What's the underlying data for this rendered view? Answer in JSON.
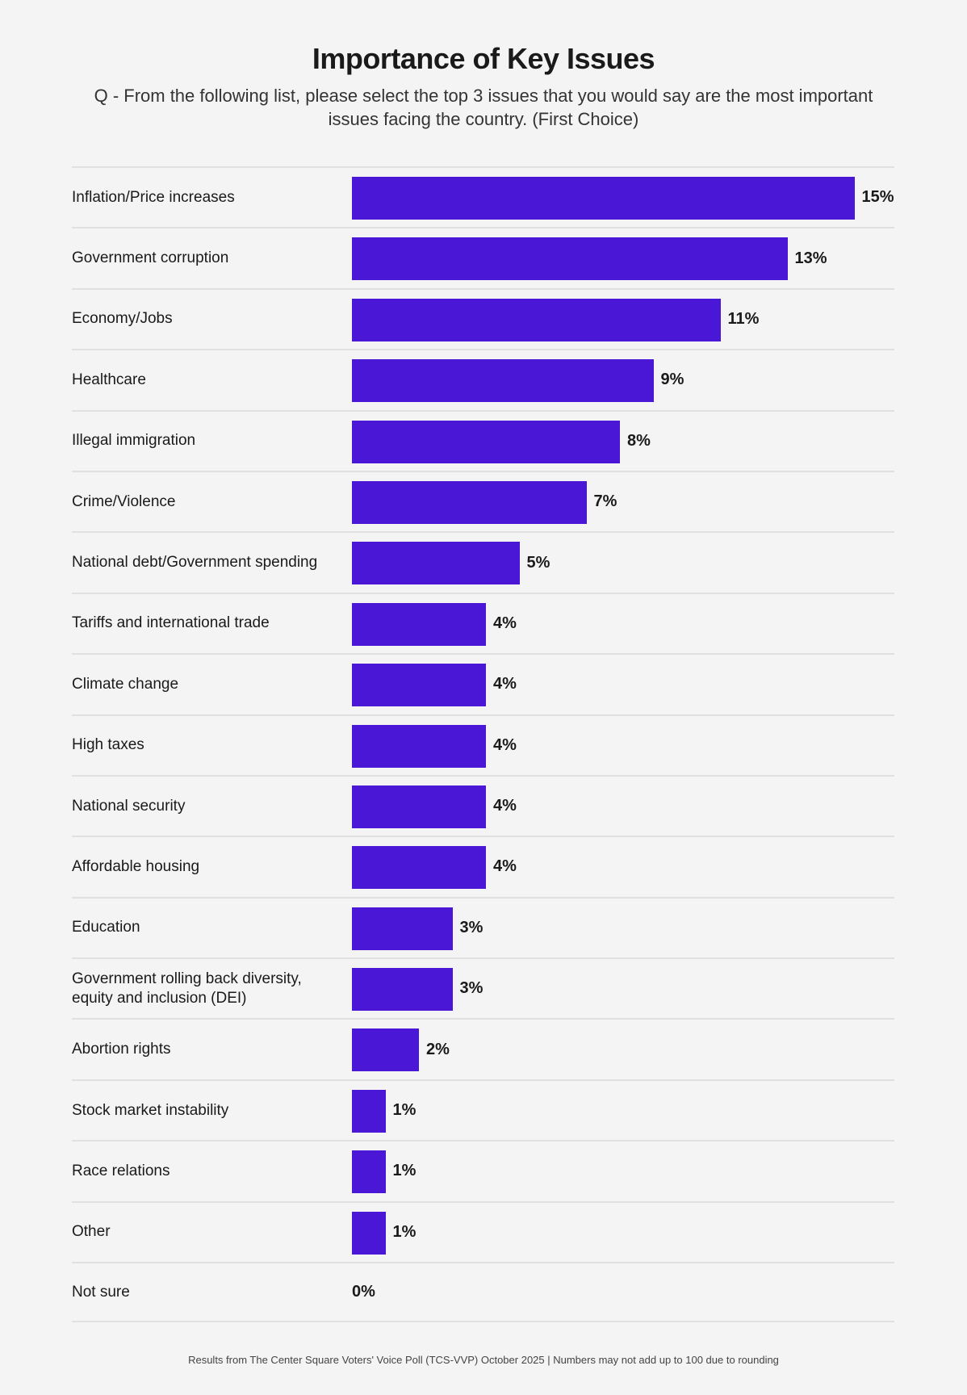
{
  "chart_data": {
    "type": "bar",
    "orientation": "horizontal",
    "title": "Importance of Key Issues",
    "subtitle": "Q - From the following list, please select the top 3 issues that you would say are the most important issues facing the country. (First Choice)",
    "categories": [
      "Inflation/Price increases",
      "Government corruption",
      "Economy/Jobs",
      "Healthcare",
      "Illegal immigration",
      "Crime/Violence",
      "National debt/Government spending",
      "Tariffs and international trade",
      "Climate change",
      "High taxes",
      "National security",
      "Affordable housing",
      "Education",
      "Government rolling back diversity, equity and inclusion (DEI)",
      "Abortion rights",
      "Stock market instability",
      "Race relations",
      "Other",
      "Not sure"
    ],
    "values": [
      15,
      13,
      11,
      9,
      8,
      7,
      5,
      4,
      4,
      4,
      4,
      4,
      3,
      3,
      2,
      1,
      1,
      1,
      0
    ],
    "data_labels": [
      "15%",
      "13%",
      "11%",
      "9%",
      "8%",
      "7%",
      "5%",
      "4%",
      "4%",
      "4%",
      "4%",
      "4%",
      "3%",
      "3%",
      "2%",
      "1%",
      "1%",
      "1%",
      "0%"
    ],
    "bar_color": "#4a17d6",
    "grid": false,
    "footer": "Results from The Center Square Voters' Voice Poll (TCS-VVP) October 2025 | Numbers may not add up to 100 due to rounding"
  }
}
